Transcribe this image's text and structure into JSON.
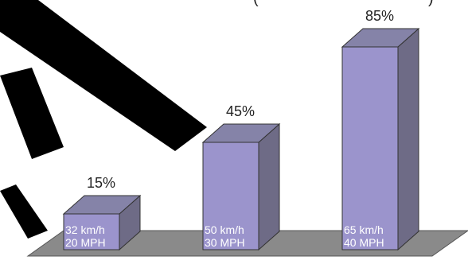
{
  "header": {
    "fragment_left": "(",
    "fragment_right": ")"
  },
  "colors": {
    "bar_front": "#9b94cc",
    "bar_side": "#6e6b86",
    "bar_top": "#8583a8",
    "floor": "#8a8a8a",
    "watermark": "#000000"
  },
  "chart_data": {
    "type": "bar",
    "title": "",
    "xlabel": "",
    "ylabel": "",
    "ylim": [
      0,
      100
    ],
    "grid": false,
    "categories": [
      "32 km/h 20 MPH",
      "50 km/h 30 MPH",
      "65 km/h 40 MPH"
    ],
    "values": [
      15,
      45,
      85
    ],
    "value_labels": [
      "15%",
      "45%",
      "85%"
    ],
    "category_lines": [
      [
        "32 km/h",
        "20 MPH"
      ],
      [
        "50 km/h",
        "30 MPH"
      ],
      [
        "65 km/h",
        "40 MPH"
      ]
    ]
  }
}
